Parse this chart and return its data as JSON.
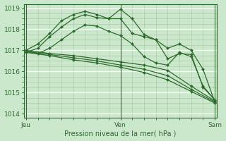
{
  "bg_color": "#cce8cc",
  "grid_color": "#aaccaa",
  "line_color": "#2d6a2d",
  "marker_color": "#2d6a2d",
  "xlabel": "Pression niveau de la mer( hPa )",
  "xtick_labels": [
    "Jeu",
    "Ven",
    "Sam"
  ],
  "xtick_positions": [
    0,
    48,
    96
  ],
  "ylim": [
    1013.8,
    1019.2
  ],
  "yticks": [
    1014,
    1015,
    1016,
    1017,
    1018,
    1019
  ],
  "xlim": [
    -1,
    97
  ],
  "series": [
    {
      "x": [
        0,
        6,
        12,
        18,
        24,
        30,
        36,
        42,
        48,
        54,
        60,
        66,
        72,
        78,
        84,
        90,
        96
      ],
      "y": [
        1017.0,
        1017.3,
        1017.8,
        1018.4,
        1018.7,
        1018.85,
        1018.7,
        1018.5,
        1018.95,
        1018.5,
        1017.75,
        1017.5,
        1017.1,
        1017.3,
        1017.0,
        1016.1,
        1014.55
      ]
    },
    {
      "x": [
        0,
        6,
        12,
        18,
        24,
        30,
        36,
        42,
        48,
        54,
        60,
        66,
        72,
        78,
        84,
        90,
        96
      ],
      "y": [
        1016.9,
        1017.1,
        1017.65,
        1018.1,
        1018.5,
        1018.7,
        1018.55,
        1018.5,
        1018.5,
        1017.8,
        1017.65,
        1017.5,
        1016.6,
        1016.85,
        1016.8,
        1015.25,
        1014.65
      ]
    },
    {
      "x": [
        0,
        6,
        12,
        18,
        24,
        30,
        36,
        42,
        48,
        54,
        60,
        66,
        72,
        78,
        84,
        90,
        96
      ],
      "y": [
        1016.95,
        1016.85,
        1017.1,
        1017.5,
        1017.9,
        1018.2,
        1018.15,
        1017.9,
        1017.7,
        1017.3,
        1016.7,
        1016.4,
        1016.3,
        1016.9,
        1016.7,
        1015.3,
        1014.65
      ]
    },
    {
      "x": [
        0,
        12,
        24,
        36,
        48,
        60,
        72,
        84,
        96
      ],
      "y": [
        1017.0,
        1016.85,
        1016.75,
        1016.6,
        1016.45,
        1016.3,
        1016.05,
        1015.3,
        1014.6
      ]
    },
    {
      "x": [
        0,
        12,
        24,
        36,
        48,
        60,
        72,
        84,
        96
      ],
      "y": [
        1016.95,
        1016.8,
        1016.65,
        1016.5,
        1016.3,
        1016.1,
        1015.8,
        1015.15,
        1014.55
      ]
    },
    {
      "x": [
        0,
        12,
        24,
        36,
        48,
        60,
        72,
        84,
        96
      ],
      "y": [
        1016.9,
        1016.75,
        1016.55,
        1016.4,
        1016.2,
        1015.95,
        1015.6,
        1015.05,
        1014.5
      ]
    }
  ]
}
